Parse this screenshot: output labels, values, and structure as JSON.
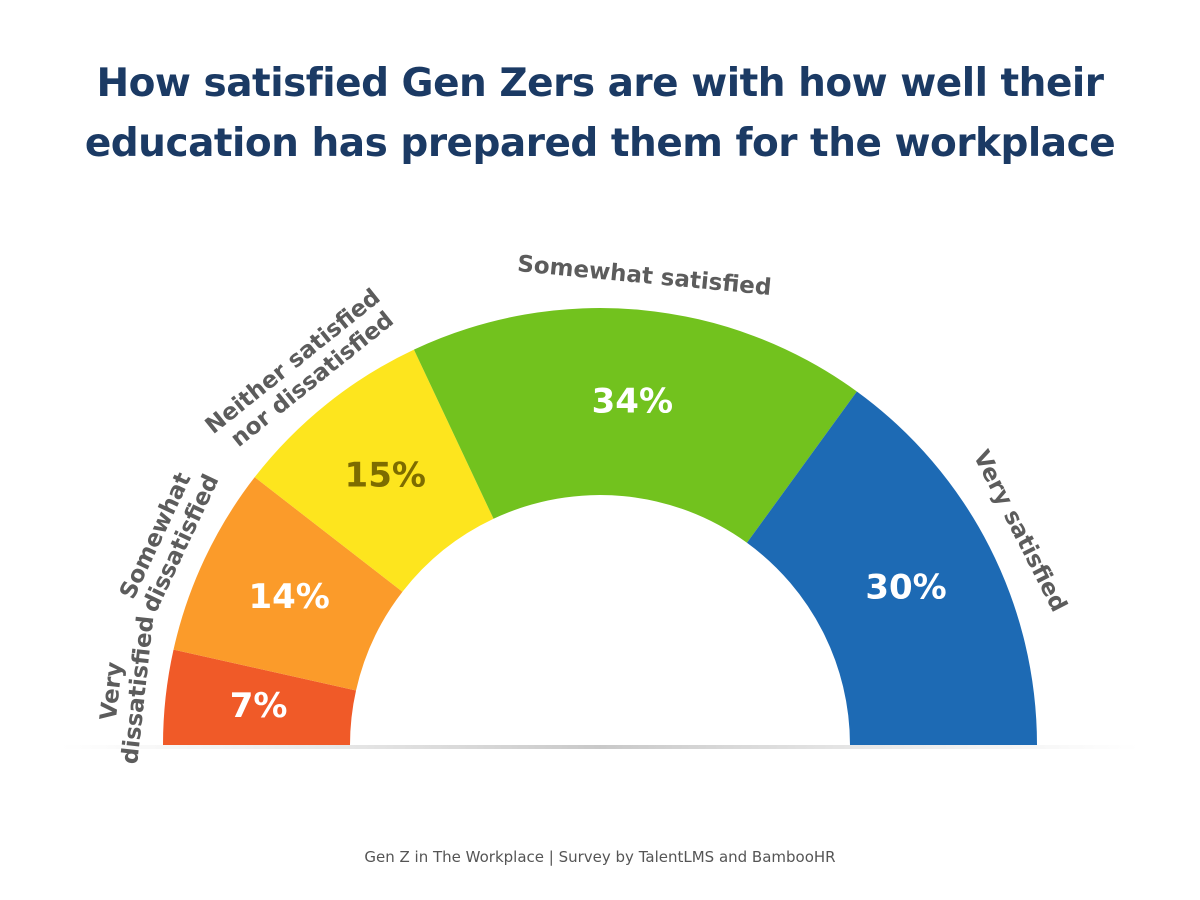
{
  "chart_data": {
    "type": "gauge",
    "title": "How satisfied Gen Zers are with how well their education has prepared them for the workplace",
    "categories": [
      "Very dissatisfied",
      "Somewhat dissatisfied",
      "Neither satisfied nor dissatisfied",
      "Somewhat satisfied",
      "Very satisfied"
    ],
    "values": [
      7,
      14,
      15,
      34,
      30
    ],
    "value_labels": [
      "7%",
      "14%",
      "15%",
      "34%",
      "30%"
    ],
    "colors": [
      "#f05a28",
      "#fb9b2a",
      "#fde51e",
      "#72c21e",
      "#1d6ab4"
    ],
    "source": "Gen Z in The Workplace | Survey by TalentLMS and BambooHR"
  }
}
